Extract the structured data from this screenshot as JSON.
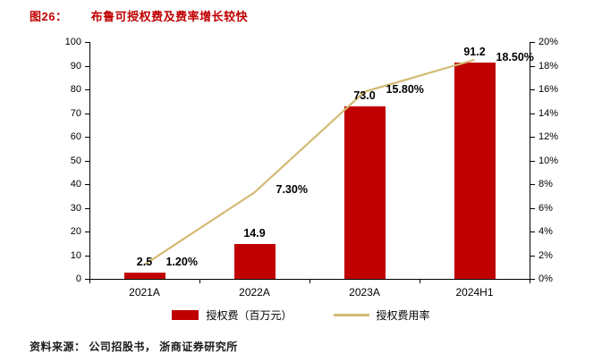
{
  "header": {
    "figure_label": "图26：",
    "title": "布鲁可授权费及费率增长较快"
  },
  "footer": {
    "source_label": "资料来源：",
    "source_text": "公司招股书， 浙商证券研究所"
  },
  "chart_data": {
    "type": "bar",
    "title": "布鲁可授权费及费率增长较快",
    "categories": [
      "2021A",
      "2022A",
      "2023A",
      "2024H1"
    ],
    "series": [
      {
        "name": "授权费（百万元）",
        "type": "bar",
        "axis": "left",
        "color": "#c00000",
        "values": [
          2.5,
          14.9,
          73.0,
          91.2
        ],
        "labels": [
          "2.5",
          "14.9",
          "73.0",
          "91.2"
        ]
      },
      {
        "name": "授权费用率",
        "type": "line",
        "axis": "right",
        "color": "#d3ba74",
        "values": [
          1.2,
          7.3,
          15.8,
          18.5
        ],
        "labels": [
          "1.20%",
          "7.30%",
          "15.80%",
          "18.50%"
        ]
      }
    ],
    "left_axis": {
      "min": 0,
      "max": 100,
      "step": 10,
      "ticks": [
        "0",
        "10",
        "20",
        "30",
        "40",
        "50",
        "60",
        "70",
        "80",
        "90",
        "100"
      ]
    },
    "right_axis": {
      "min": 0,
      "max": 20,
      "step": 2,
      "ticks": [
        "0%",
        "2%",
        "4%",
        "6%",
        "8%",
        "10%",
        "12%",
        "14%",
        "16%",
        "18%",
        "20%"
      ]
    },
    "legend_position": "bottom",
    "grid": false
  }
}
